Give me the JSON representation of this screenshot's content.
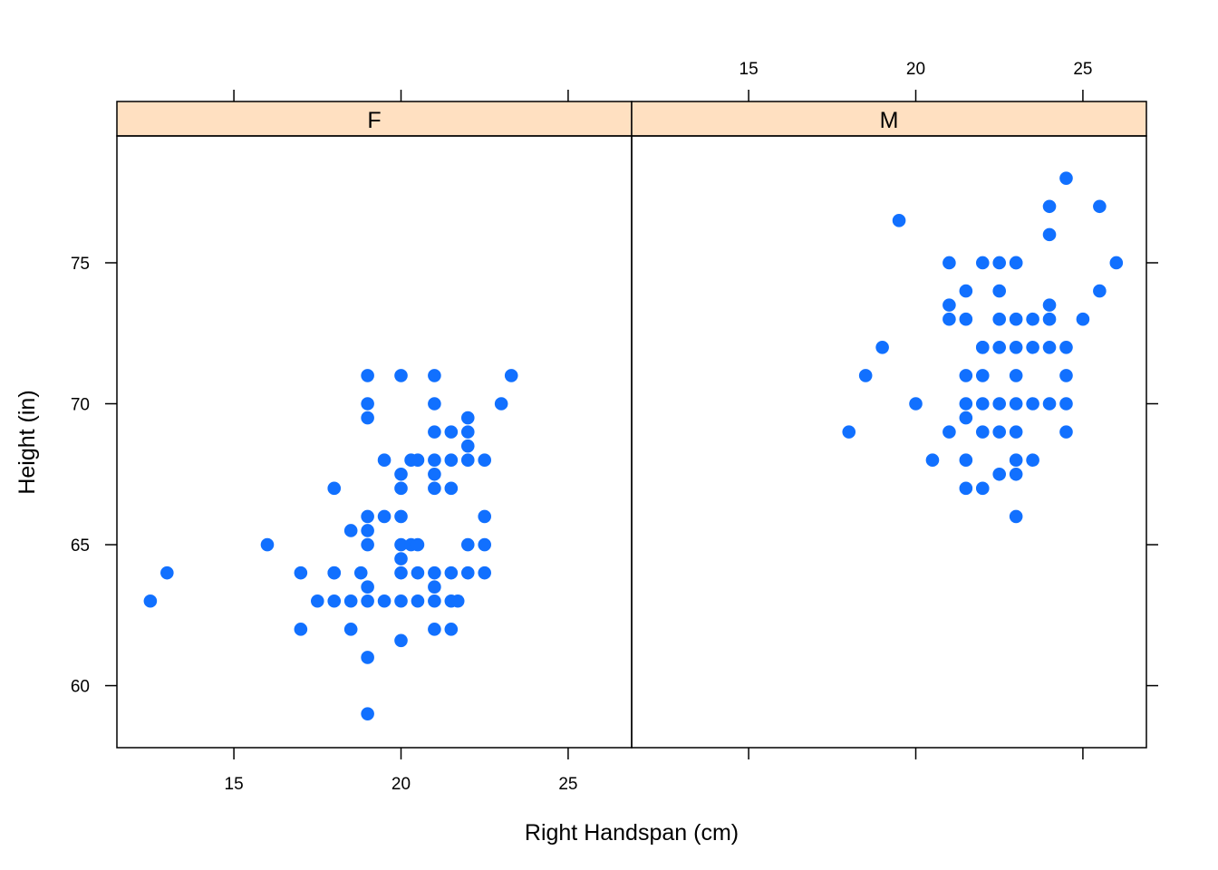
{
  "chart_data": {
    "type": "scatter",
    "xlabel": "Right Handspan (cm)",
    "ylabel": "Height (in)",
    "xlim": [
      11.5,
      26.9
    ],
    "ylim": [
      57.8,
      79.5
    ],
    "x_ticks": [
      15,
      20,
      25
    ],
    "y_ticks": [
      60,
      65,
      70,
      75
    ],
    "strip_color": "#ffe0c1",
    "point_color": "#1170ff",
    "grid": false,
    "panels": [
      {
        "name": "F",
        "points": [
          [
            12.5,
            63
          ],
          [
            13,
            64
          ],
          [
            16,
            65
          ],
          [
            17,
            64
          ],
          [
            17,
            62
          ],
          [
            18,
            67
          ],
          [
            18,
            64
          ],
          [
            18,
            64
          ],
          [
            18,
            63
          ],
          [
            17.5,
            63
          ],
          [
            18.5,
            65.5
          ],
          [
            18.5,
            63
          ],
          [
            18.5,
            62
          ],
          [
            18.8,
            64
          ],
          [
            19,
            71
          ],
          [
            19,
            70
          ],
          [
            19,
            69.5
          ],
          [
            19,
            66
          ],
          [
            19,
            65.5
          ],
          [
            19,
            65
          ],
          [
            19,
            63.5
          ],
          [
            19,
            63
          ],
          [
            19,
            61
          ],
          [
            19,
            59
          ],
          [
            19.5,
            68
          ],
          [
            19.5,
            66
          ],
          [
            19.5,
            63
          ],
          [
            20,
            71
          ],
          [
            20,
            67.5
          ],
          [
            20,
            67
          ],
          [
            20,
            66
          ],
          [
            20,
            65
          ],
          [
            20,
            64.5
          ],
          [
            20,
            64
          ],
          [
            20,
            63
          ],
          [
            20,
            61.6
          ],
          [
            20.3,
            68
          ],
          [
            20.3,
            65
          ],
          [
            20.5,
            68
          ],
          [
            20.5,
            65
          ],
          [
            20.5,
            64
          ],
          [
            20.5,
            63
          ],
          [
            21,
            71
          ],
          [
            21,
            70
          ],
          [
            21,
            69
          ],
          [
            21,
            68
          ],
          [
            21,
            67.5
          ],
          [
            21,
            67
          ],
          [
            21,
            64
          ],
          [
            21,
            63.5
          ],
          [
            21,
            63
          ],
          [
            21,
            62
          ],
          [
            21.5,
            69
          ],
          [
            21.5,
            68
          ],
          [
            21.5,
            67
          ],
          [
            21.5,
            64
          ],
          [
            21.5,
            63
          ],
          [
            21.5,
            62
          ],
          [
            21.7,
            63
          ],
          [
            22,
            69.5
          ],
          [
            22,
            69
          ],
          [
            22,
            68.5
          ],
          [
            22,
            68
          ],
          [
            22,
            65
          ],
          [
            22,
            64
          ],
          [
            22.5,
            68
          ],
          [
            22.5,
            66
          ],
          [
            22.5,
            65
          ],
          [
            22.5,
            64
          ],
          [
            23,
            70
          ],
          [
            23.3,
            71
          ]
        ]
      },
      {
        "name": "M",
        "points": [
          [
            18,
            69
          ],
          [
            18.5,
            71
          ],
          [
            19,
            72
          ],
          [
            19.5,
            76.5
          ],
          [
            20,
            70
          ],
          [
            20.5,
            68
          ],
          [
            21,
            75
          ],
          [
            21,
            73.5
          ],
          [
            21,
            73
          ],
          [
            21,
            69
          ],
          [
            21.5,
            74
          ],
          [
            21.5,
            73
          ],
          [
            21.5,
            71
          ],
          [
            21.5,
            70
          ],
          [
            21.5,
            69.5
          ],
          [
            21.5,
            68
          ],
          [
            21.5,
            67
          ],
          [
            22,
            75
          ],
          [
            22,
            72
          ],
          [
            22,
            72
          ],
          [
            22,
            71
          ],
          [
            22,
            70
          ],
          [
            22,
            69
          ],
          [
            22,
            67
          ],
          [
            22.5,
            75
          ],
          [
            22.5,
            74
          ],
          [
            22.5,
            73
          ],
          [
            22.5,
            72
          ],
          [
            22.5,
            70
          ],
          [
            22.5,
            69
          ],
          [
            22.5,
            67.5
          ],
          [
            23,
            75
          ],
          [
            23,
            75
          ],
          [
            23,
            73
          ],
          [
            23,
            72
          ],
          [
            23,
            71
          ],
          [
            23,
            70
          ],
          [
            23,
            69
          ],
          [
            23,
            68
          ],
          [
            23,
            67.5
          ],
          [
            23,
            66
          ],
          [
            23.5,
            73
          ],
          [
            23.5,
            72
          ],
          [
            23.5,
            70
          ],
          [
            23.5,
            68
          ],
          [
            24,
            77
          ],
          [
            24,
            76
          ],
          [
            24,
            73.5
          ],
          [
            24,
            73
          ],
          [
            24,
            72
          ],
          [
            24,
            70
          ],
          [
            24.5,
            78
          ],
          [
            24.5,
            72
          ],
          [
            24.5,
            71
          ],
          [
            24.5,
            70
          ],
          [
            24.5,
            69
          ],
          [
            25,
            73
          ],
          [
            25.5,
            77
          ],
          [
            25.5,
            74
          ],
          [
            26,
            75
          ]
        ]
      }
    ]
  }
}
